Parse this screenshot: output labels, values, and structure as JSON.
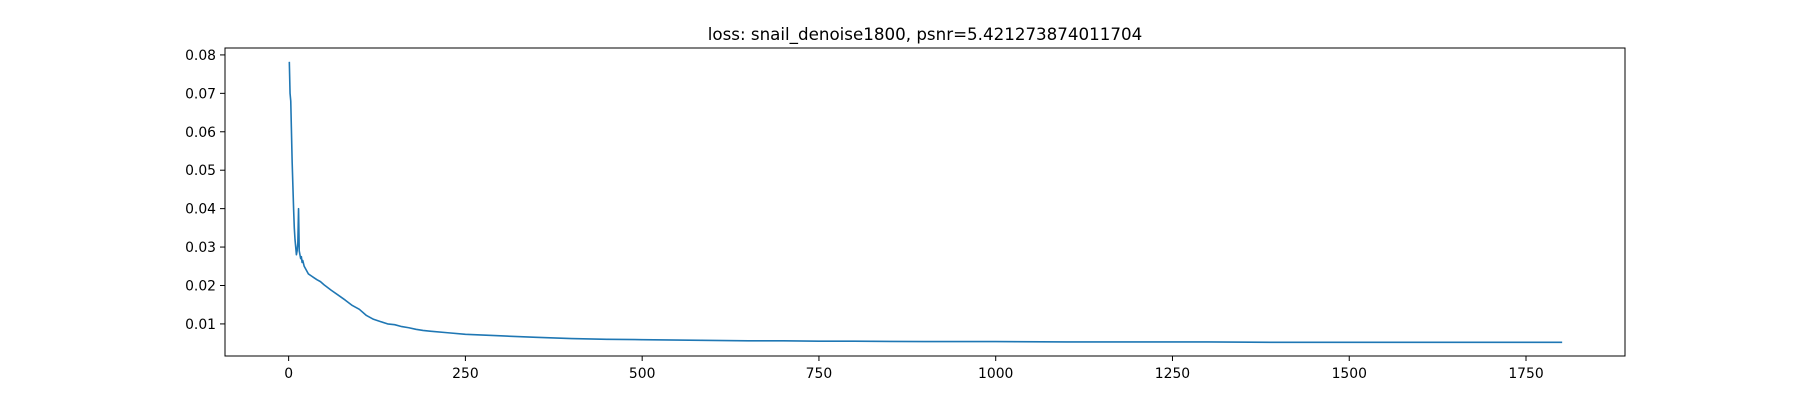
{
  "chart_data": {
    "type": "line",
    "title": "loss: snail_denoise1800, psnr=5.421273874011704",
    "xlabel": "",
    "ylabel": "",
    "xlim": [
      -90,
      1890
    ],
    "ylim": [
      0.00165,
      0.0818
    ],
    "x_ticks": [
      0,
      250,
      500,
      750,
      1000,
      1250,
      1500,
      1750
    ],
    "x_tick_labels": [
      "0",
      "250",
      "500",
      "750",
      "1000",
      "1250",
      "1500",
      "1750"
    ],
    "y_ticks": [
      0.01,
      0.02,
      0.03,
      0.04,
      0.05,
      0.06,
      0.07,
      0.08
    ],
    "y_tick_labels": [
      "0.01",
      "0.02",
      "0.03",
      "0.04",
      "0.05",
      "0.06",
      "0.07",
      "0.08"
    ],
    "grid": false,
    "series": [
      {
        "color": "#1f77b4",
        "x": [
          1,
          2,
          3,
          4,
          5,
          6,
          7,
          8,
          9,
          10,
          11,
          12,
          13,
          14,
          15,
          16,
          17,
          18,
          19,
          20,
          22,
          25,
          28,
          32,
          36,
          40,
          45,
          50,
          60,
          70,
          80,
          90,
          100,
          110,
          120,
          130,
          140,
          150,
          160,
          170,
          180,
          190,
          200,
          225,
          250,
          275,
          300,
          350,
          400,
          450,
          500,
          550,
          600,
          650,
          700,
          750,
          800,
          900,
          1000,
          1100,
          1200,
          1300,
          1400,
          1500,
          1600,
          1700,
          1800
        ],
        "y": [
          0.078,
          0.07,
          0.068,
          0.06,
          0.052,
          0.046,
          0.04,
          0.035,
          0.032,
          0.03,
          0.028,
          0.029,
          0.031,
          0.04,
          0.029,
          0.028,
          0.027,
          0.0275,
          0.026,
          0.0265,
          0.025,
          0.024,
          0.023,
          0.0225,
          0.022,
          0.0215,
          0.021,
          0.0202,
          0.0188,
          0.0175,
          0.0162,
          0.0148,
          0.0138,
          0.0122,
          0.0112,
          0.0106,
          0.01,
          0.0098,
          0.0093,
          0.009,
          0.0086,
          0.0083,
          0.0081,
          0.0077,
          0.0073,
          0.0071,
          0.0069,
          0.0065,
          0.0062,
          0.006,
          0.0059,
          0.0058,
          0.0057,
          0.0056,
          0.0056,
          0.0055,
          0.0055,
          0.0054,
          0.0054,
          0.0053,
          0.0053,
          0.0053,
          0.0052,
          0.0052,
          0.0052,
          0.0052,
          0.0052
        ]
      }
    ]
  }
}
